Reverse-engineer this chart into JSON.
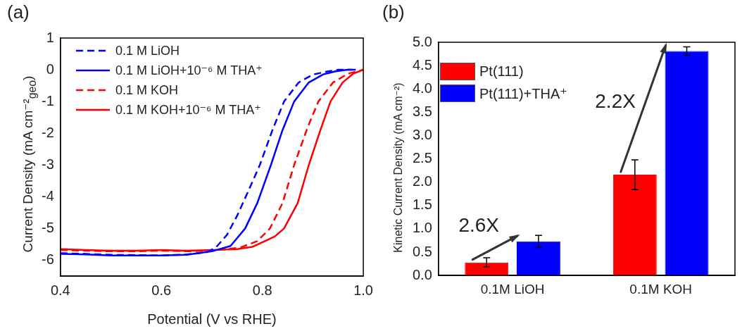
{
  "chart_data": [
    {
      "type": "line",
      "title": "(a)",
      "xlabel": "Potential (V vs RHE)",
      "ylabel": "Current Density (mA cm⁻²$_{geo}$)",
      "xlim": [
        0.4,
        1.0
      ],
      "ylim": [
        -6.5,
        1
      ],
      "xticks": [
        0.4,
        0.6,
        0.8,
        {
          "value": 1,
          "label": "1.0"
        }
      ],
      "yticks": [
        -6,
        -5,
        -4,
        -3,
        -2,
        -1,
        0,
        1
      ],
      "legend": "top left",
      "series": [
        {
          "name": "0.1 M LiOH",
          "color": "#0000ff",
          "line_style": "dashed",
          "x": [
            0.4,
            0.45,
            0.5,
            0.55,
            0.6,
            0.65,
            0.69,
            0.708,
            0.73,
            0.75,
            0.77,
            0.795,
            0.82,
            0.843,
            0.872,
            0.9,
            0.93,
            0.95,
            0.978
          ],
          "values": [
            -5.78,
            -5.8,
            -5.83,
            -5.84,
            -5.85,
            -5.82,
            -5.75,
            -5.6,
            -5.2,
            -4.6,
            -3.9,
            -3.0,
            -1.9,
            -1.0,
            -0.4,
            -0.15,
            -0.05,
            0,
            0
          ]
        },
        {
          "name": "0.1 M LiOH+10⁻⁶ M THA⁺",
          "color": "#0000ff",
          "line_style": "solid",
          "x": [
            0.4,
            0.45,
            0.5,
            0.55,
            0.6,
            0.65,
            0.7,
            0.737,
            0.766,
            0.79,
            0.817,
            0.84,
            0.863,
            0.892,
            0.92,
            0.945,
            0.969,
            0.985
          ],
          "values": [
            -5.8,
            -5.82,
            -5.85,
            -5.85,
            -5.85,
            -5.83,
            -5.72,
            -5.55,
            -5.0,
            -4.2,
            -3.0,
            -1.9,
            -1.0,
            -0.4,
            -0.15,
            -0.05,
            0,
            0
          ]
        },
        {
          "name": "0.1 M KOH",
          "color": "#ff0000",
          "line_style": "dashed",
          "x": [
            0.4,
            0.45,
            0.5,
            0.55,
            0.6,
            0.65,
            0.7,
            0.757,
            0.79,
            0.815,
            0.84,
            0.863,
            0.89,
            0.911,
            0.94,
            0.97,
            1.0
          ],
          "values": [
            -5.68,
            -5.7,
            -5.72,
            -5.72,
            -5.7,
            -5.72,
            -5.7,
            -5.6,
            -5.4,
            -5.0,
            -4.2,
            -3.0,
            -1.8,
            -1.0,
            -0.4,
            -0.12,
            0
          ]
        },
        {
          "name": "0.1 M KOH+10⁻⁶ M THA⁺",
          "color": "#ff0000",
          "line_style": "solid",
          "x": [
            0.4,
            0.45,
            0.5,
            0.55,
            0.6,
            0.65,
            0.7,
            0.75,
            0.78,
            0.805,
            0.825,
            0.843,
            0.87,
            0.892,
            0.915,
            0.935,
            0.959,
            0.98,
            1.0
          ],
          "values": [
            -5.65,
            -5.68,
            -5.7,
            -5.7,
            -5.68,
            -5.7,
            -5.68,
            -5.65,
            -5.58,
            -5.4,
            -5.25,
            -5.0,
            -4.2,
            -3.0,
            -1.9,
            -1.0,
            -0.4,
            -0.12,
            0
          ]
        }
      ]
    },
    {
      "type": "bar",
      "title": "(b)",
      "ylabel": "Kinetic Current Density (mA cm⁻²)",
      "categories": [
        "0.1M LiOH",
        "0.1M KOH"
      ],
      "ylim": [
        0,
        5
      ],
      "yticks": [
        {
          "value": 0,
          "label": "0.0"
        },
        0.5,
        {
          "value": 1,
          "label": "1.0"
        },
        1.5,
        {
          "value": 2,
          "label": "2.0"
        },
        2.5,
        {
          "value": 3,
          "label": "3.0"
        },
        3.5,
        {
          "value": 4,
          "label": "4.0"
        },
        4.5,
        {
          "value": 5,
          "label": "5.0"
        }
      ],
      "legend": "top left",
      "annotations": [
        "2.6X",
        "2.2X"
      ],
      "series": [
        {
          "name": "Pt(111)",
          "color": "#ff0000",
          "values": [
            0.28,
            2.16
          ],
          "errors": [
            0.1,
            0.32
          ]
        },
        {
          "name": "Pt(111)+THA⁺",
          "color": "#0000ff",
          "values": [
            0.73,
            4.81
          ],
          "errors": [
            0.13,
            0.09
          ]
        }
      ]
    }
  ]
}
